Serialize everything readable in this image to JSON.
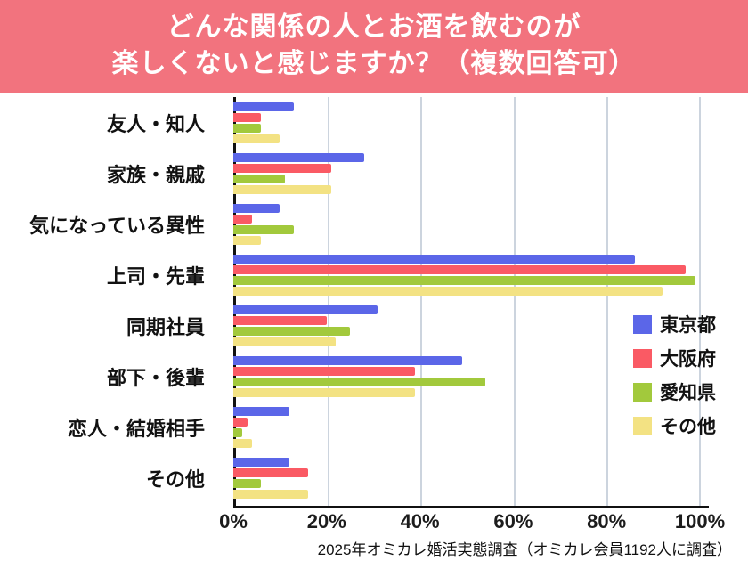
{
  "header": {
    "title_line1": "どんな関係の人とお酒を飲むのが",
    "title_line2": "楽しくないと感じますか？（複数回答可）",
    "bg_color": "#f2737e",
    "text_color": "#ffffff"
  },
  "chart_data": {
    "type": "bar",
    "orientation": "horizontal",
    "title": "どんな関係の人とお酒を飲むのが楽しくないと感じますか？（複数回答可）",
    "categories": [
      "友人・知人",
      "家族・親戚",
      "気になっている異性",
      "上司・先輩",
      "同期社員",
      "部下・後輩",
      "恋人・結婚相手",
      "その他"
    ],
    "series": [
      {
        "name": "東京都",
        "color": "#5b66e8",
        "values": [
          13,
          28,
          10,
          86,
          31,
          49,
          12,
          12
        ]
      },
      {
        "name": "大阪府",
        "color": "#fa5a64",
        "values": [
          6,
          21,
          4,
          97,
          20,
          39,
          3,
          16
        ]
      },
      {
        "name": "愛知県",
        "color": "#a2c93c",
        "values": [
          6,
          11,
          13,
          99,
          25,
          54,
          2,
          6
        ]
      },
      {
        "name": "その他",
        "color": "#f3e283",
        "values": [
          10,
          21,
          6,
          92,
          22,
          39,
          4,
          16
        ]
      }
    ],
    "x_ticks": [
      "0%",
      "20%",
      "40%",
      "60%",
      "80%",
      "100%"
    ],
    "xlim": [
      0,
      100
    ],
    "grid": true,
    "legend_position": "right-middle"
  },
  "footer": {
    "source": "2025年オミカレ婚活実態調査（オミカレ会員1192人に調査）"
  }
}
